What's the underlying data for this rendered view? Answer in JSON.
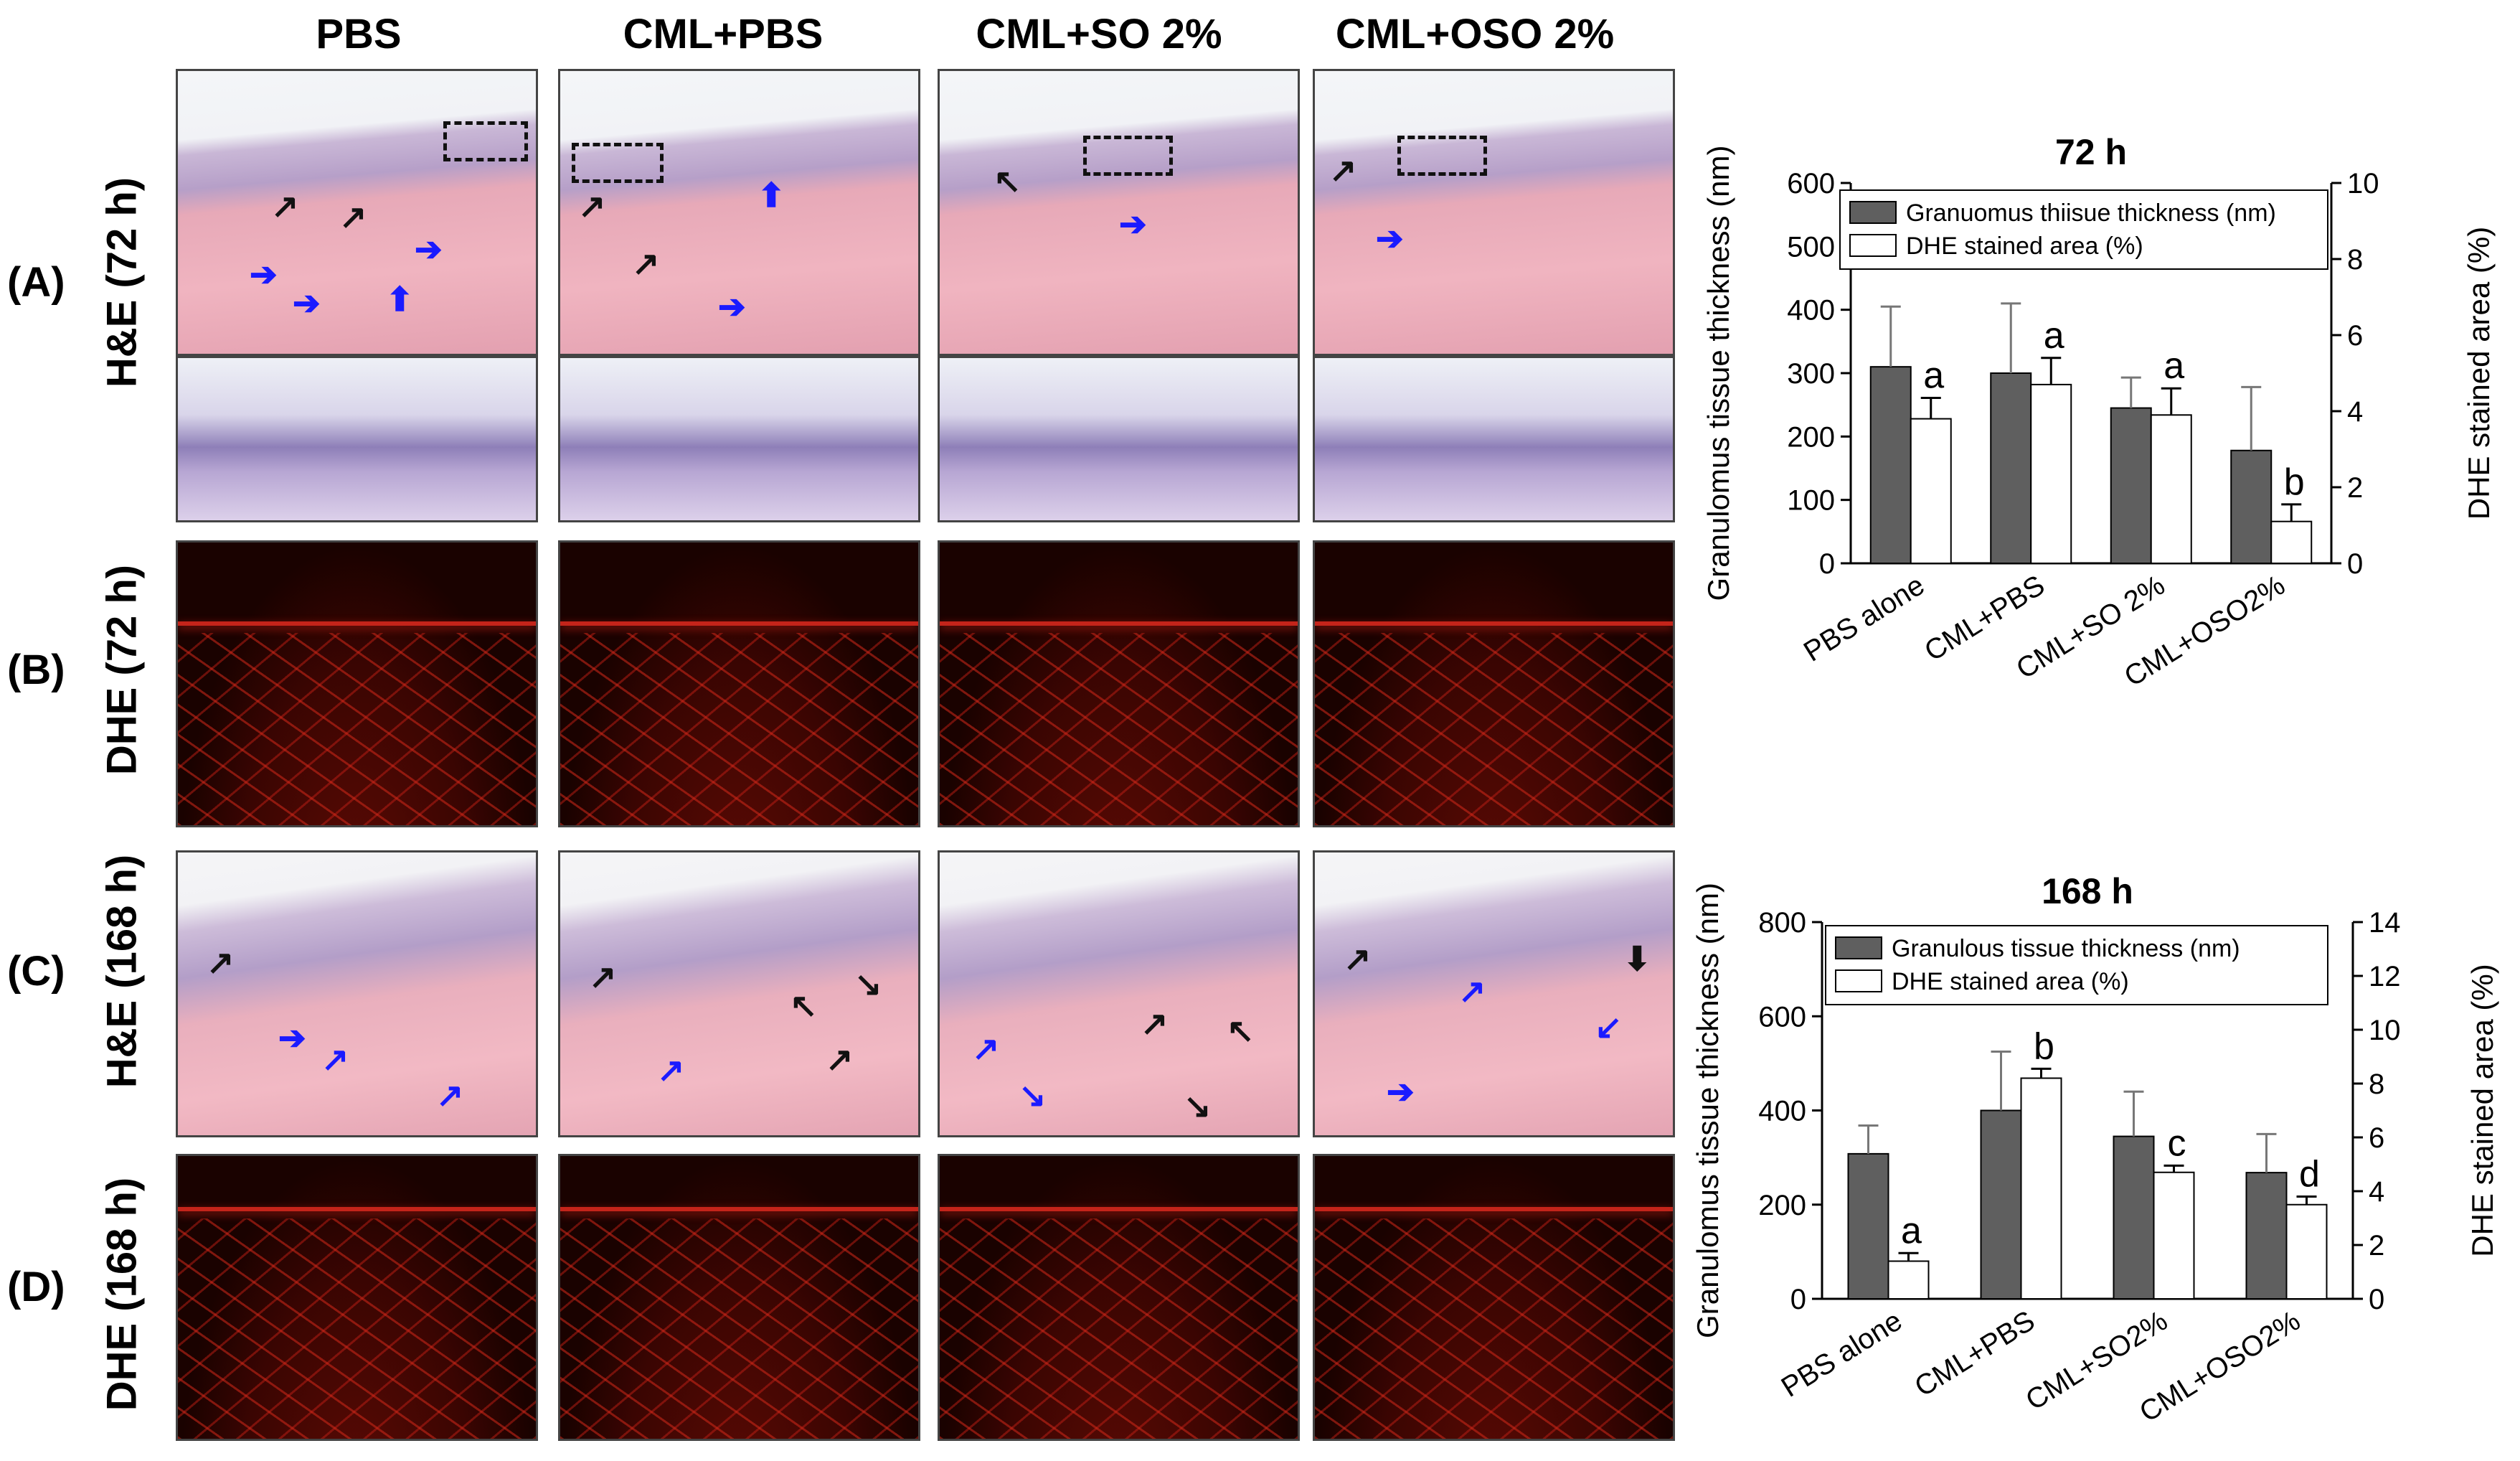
{
  "columns": [
    "PBS",
    "CML+PBS",
    "CML+SO 2%",
    "CML+OSO 2%"
  ],
  "rows": [
    {
      "code": "(A)",
      "name": "H&E (72 h)"
    },
    {
      "code": "(B)",
      "name": "DHE (72 h)"
    },
    {
      "code": "(C)",
      "name": "H&E (168 h)"
    },
    {
      "code": "(D)",
      "name": "DHE (168 h)"
    }
  ],
  "colors": {
    "dark_bar": "#5f5f5f",
    "light_bar": "#ffffff",
    "black_arrow": "#111111",
    "blue_arrow": "#1a1aff"
  },
  "chart_data": [
    {
      "type": "bar",
      "title": "72 h",
      "categories": [
        "PBS alone",
        "CML+PBS",
        "CML+SO 2%",
        "CML+OSO2%"
      ],
      "ylabel": "Granulomus tissue thickness (nm)",
      "y2label": "DHE stained area (%)",
      "ylim": [
        0,
        600
      ],
      "yticks": [
        0,
        100,
        200,
        300,
        400,
        500,
        600
      ],
      "y2lim": [
        0,
        10
      ],
      "y2ticks": [
        0,
        2,
        4,
        6,
        8,
        10
      ],
      "legend_position": "top",
      "series": [
        {
          "name": "Granuomus thiisue thickness (nm)",
          "axis": "left",
          "values": [
            310,
            300,
            245,
            178
          ],
          "errors": [
            95,
            110,
            48,
            100
          ]
        },
        {
          "name": "DHE stained area (%)",
          "axis": "right",
          "values": [
            3.8,
            4.7,
            3.9,
            1.1
          ],
          "errors": [
            0.55,
            0.7,
            0.7,
            0.45
          ]
        }
      ],
      "annotations": [
        "a",
        "a",
        "a",
        "b"
      ]
    },
    {
      "type": "bar",
      "title": "168 h",
      "categories": [
        "PBS alone",
        "CML+PBS",
        "CML+SO2%",
        "CML+OSO2%"
      ],
      "ylabel": "Granulomus tissue thickness (nm)",
      "y2label": "DHE stained area (%)",
      "ylim": [
        0,
        800
      ],
      "yticks": [
        0,
        200,
        400,
        600,
        800
      ],
      "y2lim": [
        0,
        14
      ],
      "y2ticks": [
        0,
        2,
        4,
        6,
        8,
        10,
        12,
        14
      ],
      "legend_position": "top",
      "series": [
        {
          "name": "Granulous tissue thickness (nm)",
          "axis": "left",
          "values": [
            308,
            400,
            345,
            268
          ],
          "errors": [
            60,
            125,
            95,
            82
          ]
        },
        {
          "name": "DHE stained area (%)",
          "axis": "right",
          "values": [
            1.4,
            8.2,
            4.7,
            3.5
          ],
          "errors": [
            0.3,
            0.35,
            0.25,
            0.3
          ]
        }
      ],
      "annotations": [
        "a",
        "b",
        "c",
        "d"
      ]
    }
  ]
}
